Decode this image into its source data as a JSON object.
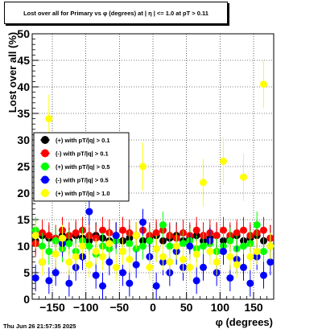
{
  "header": {
    "title": "Lost over all for Primary vs φ (degrees) at |  η  | <= 1.0 at pT > 0.11"
  },
  "footer": {
    "timestamp": "Thu Jun 26 21:57:35 2025"
  },
  "chart_data": {
    "type": "scatter",
    "xlabel": "φ (degrees)",
    "ylabel": "Lost over all (%)",
    "xlim": [
      -180,
      180
    ],
    "ylim": [
      0,
      50
    ],
    "xticks": [
      "−150",
      "−100",
      "−50",
      "0",
      "50",
      "100",
      "150"
    ],
    "yticks": [
      "0",
      "5",
      "10",
      "15",
      "20",
      "25",
      "30",
      "35",
      "40",
      "45",
      "50"
    ],
    "grid": true,
    "legend_position": "middle-left",
    "series": [
      {
        "name": "(+) with pT/|q| > 0.1",
        "color": "#000000",
        "points": [
          [
            -175,
            11
          ],
          [
            -165,
            12
          ],
          [
            -155,
            11.5
          ],
          [
            -145,
            11
          ],
          [
            -135,
            12
          ],
          [
            -125,
            11
          ],
          [
            -115,
            12
          ],
          [
            -105,
            11.5
          ],
          [
            -95,
            11
          ],
          [
            -85,
            12
          ],
          [
            -75,
            11.5
          ],
          [
            -65,
            11
          ],
          [
            -55,
            12
          ],
          [
            -45,
            11
          ],
          [
            -35,
            11.5
          ],
          [
            -25,
            12
          ],
          [
            -15,
            11
          ],
          [
            -5,
            11.5
          ],
          [
            5,
            12
          ],
          [
            15,
            11
          ],
          [
            25,
            11.5
          ],
          [
            35,
            12
          ],
          [
            45,
            11
          ],
          [
            55,
            11.5
          ],
          [
            65,
            12
          ],
          [
            75,
            11
          ],
          [
            85,
            11.5
          ],
          [
            95,
            12
          ],
          [
            105,
            11
          ],
          [
            115,
            11.5
          ],
          [
            125,
            12
          ],
          [
            135,
            11
          ],
          [
            145,
            11.5
          ],
          [
            155,
            12
          ],
          [
            165,
            11
          ],
          [
            175,
            11.5
          ]
        ]
      },
      {
        "name": "(-) with pT/|q| > 0.1",
        "color": "#ff0000",
        "points": [
          [
            -175,
            10.5
          ],
          [
            -165,
            12.5
          ],
          [
            -155,
            12
          ],
          [
            -145,
            11.5
          ],
          [
            -135,
            13
          ],
          [
            -125,
            12
          ],
          [
            -115,
            12.5
          ],
          [
            -105,
            13
          ],
          [
            -95,
            12
          ],
          [
            -85,
            11.5
          ],
          [
            -75,
            13
          ],
          [
            -65,
            12.5
          ],
          [
            -55,
            12
          ],
          [
            -45,
            13
          ],
          [
            -35,
            12.5
          ],
          [
            -25,
            12
          ],
          [
            -15,
            13
          ],
          [
            -5,
            12
          ],
          [
            5,
            12.5
          ],
          [
            15,
            13
          ],
          [
            25,
            12
          ],
          [
            35,
            11.5
          ],
          [
            45,
            12.5
          ],
          [
            55,
            12
          ],
          [
            65,
            13
          ],
          [
            75,
            12
          ],
          [
            85,
            12.5
          ],
          [
            95,
            12
          ],
          [
            105,
            13
          ],
          [
            115,
            12
          ],
          [
            125,
            12.5
          ],
          [
            135,
            13
          ],
          [
            145,
            12
          ],
          [
            155,
            12.5
          ],
          [
            165,
            13
          ],
          [
            175,
            11.5
          ]
        ]
      },
      {
        "name": "(+) with pT/|q| > 0.5",
        "color": "#00ff00",
        "points": [
          [
            -175,
            13
          ],
          [
            -165,
            10
          ],
          [
            -155,
            9
          ],
          [
            -145,
            11
          ],
          [
            -135,
            9.5
          ],
          [
            -125,
            10.5
          ],
          [
            -115,
            9
          ],
          [
            -105,
            11
          ],
          [
            -95,
            10
          ],
          [
            -85,
            8.5
          ],
          [
            -75,
            10
          ],
          [
            -65,
            9.5
          ],
          [
            -55,
            11
          ],
          [
            -45,
            9
          ],
          [
            -35,
            10.5
          ],
          [
            -25,
            9.5
          ],
          [
            -15,
            10
          ],
          [
            -5,
            11
          ],
          [
            5,
            9.5
          ],
          [
            15,
            14
          ],
          [
            25,
            10
          ],
          [
            35,
            9
          ],
          [
            45,
            10.5
          ],
          [
            55,
            11
          ],
          [
            65,
            9.5
          ],
          [
            75,
            10
          ],
          [
            85,
            10.5
          ],
          [
            95,
            9
          ],
          [
            105,
            10
          ],
          [
            115,
            11
          ],
          [
            125,
            9.5
          ],
          [
            135,
            10
          ],
          [
            145,
            10.5
          ],
          [
            155,
            14
          ],
          [
            165,
            9
          ],
          [
            175,
            10
          ]
        ]
      },
      {
        "name": "(-) with pT/|q| > 0.5",
        "color": "#0000ff",
        "points": [
          [
            -175,
            4
          ],
          [
            -165,
            7
          ],
          [
            -155,
            3.5
          ],
          [
            -145,
            5
          ],
          [
            -135,
            10.5
          ],
          [
            -125,
            3
          ],
          [
            -115,
            6
          ],
          [
            -105,
            8
          ],
          [
            -95,
            16.5
          ],
          [
            -85,
            4.5
          ],
          [
            -75,
            2.5
          ],
          [
            -65,
            7
          ],
          [
            -55,
            12
          ],
          [
            -45,
            5
          ],
          [
            -35,
            3
          ],
          [
            -25,
            6.5
          ],
          [
            -15,
            14.5
          ],
          [
            -5,
            8
          ],
          [
            5,
            2.5
          ],
          [
            15,
            7
          ],
          [
            25,
            5
          ],
          [
            35,
            9
          ],
          [
            45,
            6
          ],
          [
            55,
            10
          ],
          [
            65,
            3.5
          ],
          [
            75,
            6
          ],
          [
            85,
            11
          ],
          [
            95,
            5
          ],
          [
            105,
            9
          ],
          [
            115,
            4
          ],
          [
            125,
            7.5
          ],
          [
            135,
            6
          ],
          [
            145,
            3
          ],
          [
            155,
            8
          ],
          [
            165,
            4.5
          ],
          [
            175,
            7
          ]
        ]
      },
      {
        "name": "(+) with pT/|q| > 1.0",
        "color": "#ffff00",
        "points": [
          [
            -175,
            12
          ],
          [
            -165,
            7
          ],
          [
            -155,
            34
          ],
          [
            -145,
            8.5
          ],
          [
            -135,
            11.5
          ],
          [
            -125,
            7
          ],
          [
            -115,
            8
          ],
          [
            -105,
            10
          ],
          [
            -95,
            6.5
          ],
          [
            -85,
            9
          ],
          [
            -75,
            8
          ],
          [
            -65,
            10.5
          ],
          [
            -55,
            6
          ],
          [
            -45,
            9
          ],
          [
            -35,
            7.5
          ],
          [
            -25,
            12
          ],
          [
            -15,
            25
          ],
          [
            -5,
            6
          ],
          [
            5,
            9.5
          ],
          [
            15,
            8
          ],
          [
            25,
            7
          ],
          [
            35,
            10
          ],
          [
            45,
            7.5
          ],
          [
            55,
            6
          ],
          [
            65,
            8.5
          ],
          [
            75,
            22
          ],
          [
            85,
            9
          ],
          [
            95,
            7
          ],
          [
            105,
            26
          ],
          [
            115,
            8
          ],
          [
            125,
            6.5
          ],
          [
            135,
            23
          ],
          [
            145,
            8
          ],
          [
            155,
            9
          ],
          [
            165,
            40.5
          ],
          [
            175,
            10
          ]
        ]
      }
    ]
  }
}
